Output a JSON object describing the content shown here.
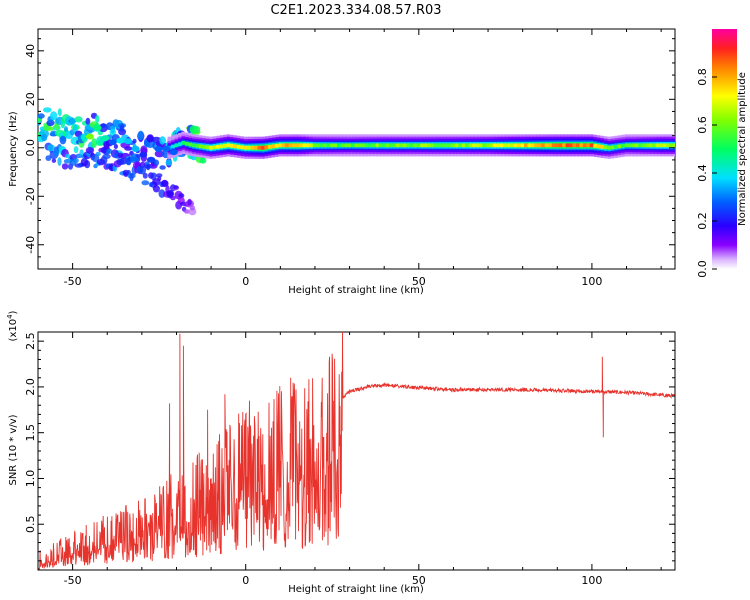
{
  "title": "C2E1.2023.334.08.57.R03",
  "chart_data": [
    {
      "type": "heatmap",
      "xlabel": "Height of straight line (km)",
      "ylabel": "Frequency (Hz)",
      "xlim": [
        -60,
        124
      ],
      "ylim": [
        -50,
        49
      ],
      "x_ticks": [
        -50,
        0,
        50,
        100
      ],
      "y_ticks": [
        -40,
        -20,
        0,
        20,
        40
      ],
      "colorbar": {
        "label": "Normalized spectral amplitude",
        "range": [
          0.0,
          1.0
        ],
        "ticks": [
          0.0,
          0.2,
          0.4,
          0.6,
          0.8
        ],
        "colormap": "rainbow (white-violet-blue-cyan-green-yellow-red)"
      },
      "grid": false,
      "ridge": {
        "description": "amplitude band along frequency ridge",
        "points": [
          {
            "x": -57,
            "y": 9,
            "amp": 0.5
          },
          {
            "x": -52,
            "y": 9,
            "amp": 0.45
          },
          {
            "x": -45,
            "y": 7,
            "amp": 0.5
          },
          {
            "x": -40,
            "y": 5,
            "amp": 0.35
          },
          {
            "x": -35,
            "y": 2,
            "amp": 0.3
          },
          {
            "x": -30,
            "y": -1,
            "amp": 0.3
          },
          {
            "x": -27,
            "y": -3,
            "amp": 0.35
          },
          {
            "x": -22,
            "y": 0,
            "amp": 0.35
          },
          {
            "x": -18,
            "y": 2,
            "amp": 0.45
          },
          {
            "x": -15,
            "y": 1,
            "amp": 0.55
          },
          {
            "x": -10,
            "y": 0,
            "amp": 0.65
          },
          {
            "x": -5,
            "y": 1,
            "amp": 0.75
          },
          {
            "x": 0,
            "y": 0,
            "amp": 0.7
          },
          {
            "x": 5,
            "y": 0,
            "amp": 0.85
          },
          {
            "x": 10,
            "y": 1,
            "amp": 0.75
          },
          {
            "x": 15,
            "y": 1,
            "amp": 0.8
          },
          {
            "x": 20,
            "y": 1,
            "amp": 0.6
          },
          {
            "x": 30,
            "y": 1,
            "amp": 0.55
          },
          {
            "x": 40,
            "y": 1,
            "amp": 0.6
          },
          {
            "x": 50,
            "y": 1,
            "amp": 0.6
          },
          {
            "x": 60,
            "y": 1,
            "amp": 0.62
          },
          {
            "x": 70,
            "y": 1,
            "amp": 0.65
          },
          {
            "x": 80,
            "y": 1,
            "amp": 0.75
          },
          {
            "x": 90,
            "y": 1,
            "amp": 0.85
          },
          {
            "x": 100,
            "y": 1,
            "amp": 0.85
          },
          {
            "x": 105,
            "y": 0,
            "amp": 0.6
          },
          {
            "x": 110,
            "y": 1,
            "amp": 0.55
          },
          {
            "x": 120,
            "y": 1,
            "amp": 0.65
          }
        ],
        "secondary_branch": [
          {
            "x": -57,
            "y": -3,
            "amp": 0.3
          },
          {
            "x": -50,
            "y": -4,
            "amp": 0.3
          },
          {
            "x": -45,
            "y": -3,
            "amp": 0.3
          },
          {
            "x": -40,
            "y": -5,
            "amp": 0.25
          },
          {
            "x": -35,
            "y": -7,
            "amp": 0.25
          },
          {
            "x": -30,
            "y": -10,
            "amp": 0.2
          },
          {
            "x": -25,
            "y": -14,
            "amp": 0.2
          },
          {
            "x": -20,
            "y": -20,
            "amp": 0.15
          },
          {
            "x": -15,
            "y": -25,
            "amp": 0.1
          }
        ]
      }
    },
    {
      "type": "line",
      "xlabel": "Height of straight line (km)",
      "ylabel": "SNR (10 * v/v)",
      "y_scale_note": "(x10^4)",
      "xlim": [
        -60,
        124
      ],
      "ylim": [
        0.0,
        2.6
      ],
      "x_ticks": [
        -50,
        0,
        50,
        100
      ],
      "y_ticks": [
        0.5,
        1.0,
        1.5,
        2.0,
        2.5
      ],
      "grid": false,
      "series": [
        {
          "color": "#e8322c",
          "trend": [
            {
              "x": -60,
              "y": 0.1
            },
            {
              "x": -50,
              "y": 0.25
            },
            {
              "x": -40,
              "y": 0.4
            },
            {
              "x": -30,
              "y": 0.55
            },
            {
              "x": -20,
              "y": 0.75
            },
            {
              "x": -10,
              "y": 1.0
            },
            {
              "x": 0,
              "y": 1.3
            },
            {
              "x": 10,
              "y": 1.45
            },
            {
              "x": 20,
              "y": 1.6
            },
            {
              "x": 25,
              "y": 1.8
            },
            {
              "x": 30,
              "y": 1.95
            },
            {
              "x": 35,
              "y": 2.0
            },
            {
              "x": 40,
              "y": 2.02
            },
            {
              "x": 50,
              "y": 1.99
            },
            {
              "x": 60,
              "y": 1.97
            },
            {
              "x": 70,
              "y": 1.97
            },
            {
              "x": 80,
              "y": 1.97
            },
            {
              "x": 90,
              "y": 1.96
            },
            {
              "x": 100,
              "y": 1.95
            },
            {
              "x": 110,
              "y": 1.94
            },
            {
              "x": 124,
              "y": 1.9
            }
          ],
          "spikes": [
            {
              "x": -19,
              "y": 2.58
            },
            {
              "x": -18,
              "y": 2.45
            },
            {
              "x": -22,
              "y": 1.82
            },
            {
              "x": -11,
              "y": 1.75
            },
            {
              "x": -6,
              "y": 1.92
            },
            {
              "x": 13,
              "y": 2.1
            },
            {
              "x": 103,
              "y": 2.33
            },
            {
              "x": 103.3,
              "y": 1.45
            }
          ]
        }
      ]
    }
  ]
}
